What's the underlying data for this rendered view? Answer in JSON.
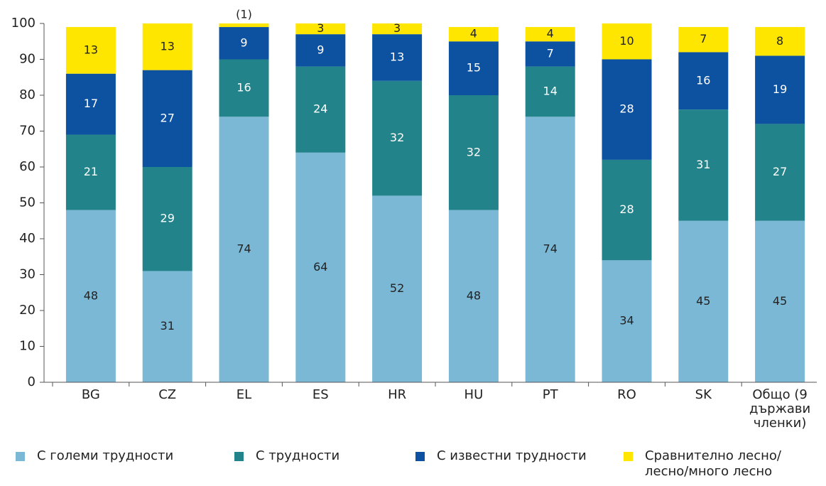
{
  "chart_data": {
    "type": "stacked_bar",
    "categories": [
      "BG",
      "CZ",
      "EL",
      "ES",
      "HR",
      "HU",
      "PT",
      "RO",
      "SK",
      "Общо (9 държави членки)"
    ],
    "series": [
      {
        "name": "С големи трудности",
        "color": "#7ab8d6",
        "values": [
          48,
          31,
          74,
          64,
          52,
          48,
          74,
          34,
          45,
          45
        ]
      },
      {
        "name": "С трудности",
        "color": "#23838a",
        "values": [
          21,
          29,
          16,
          24,
          32,
          32,
          14,
          28,
          31,
          27
        ]
      },
      {
        "name": "С известни трудности",
        "color": "#0d52a0",
        "values": [
          17,
          27,
          9,
          9,
          13,
          15,
          7,
          28,
          16,
          19
        ]
      },
      {
        "name": "Сравнително лесно/ лесно/много лесно",
        "color": "#ffe600",
        "values": [
          13,
          13,
          1,
          3,
          3,
          4,
          4,
          10,
          7,
          8
        ],
        "value_labels": [
          "13",
          "13",
          "(1)",
          "3",
          "3",
          "4",
          "4",
          "10",
          "7",
          "8"
        ]
      }
    ],
    "ylim": [
      0,
      100
    ],
    "yticks": [
      0,
      10,
      20,
      30,
      40,
      50,
      60,
      70,
      80,
      90,
      100
    ],
    "grid": false,
    "legend": "bottom"
  }
}
